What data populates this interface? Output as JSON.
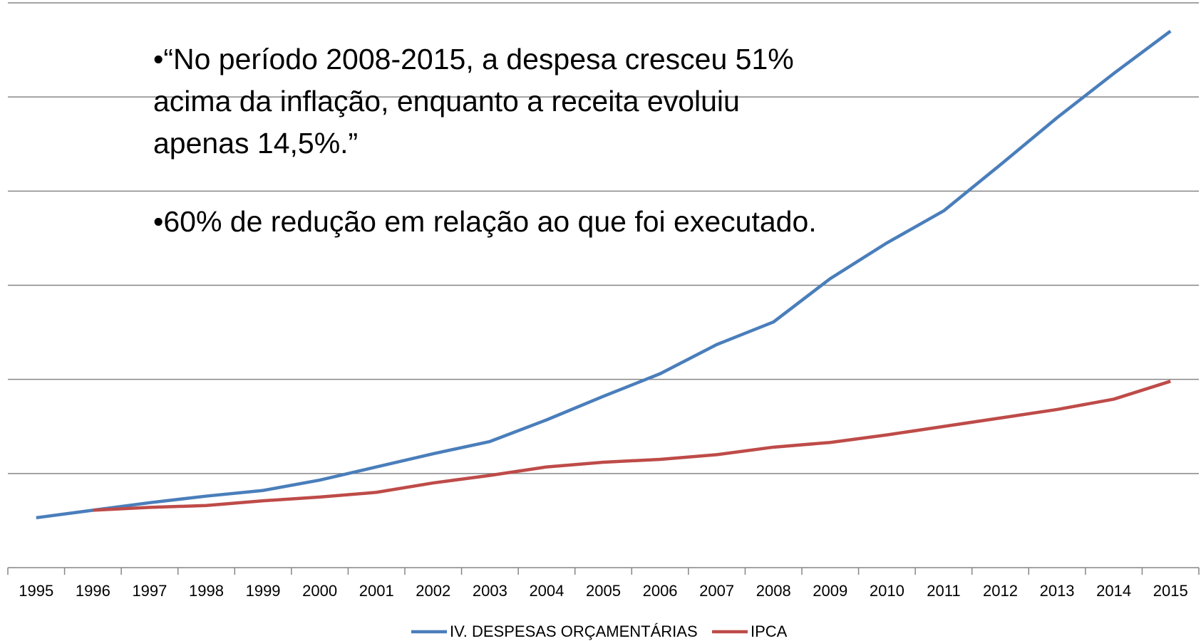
{
  "chart_data": {
    "type": "line",
    "annotations": [
      "•“No período 2008-2015, a despesa cresceu 51%",
      "acima da inflação, enquanto a receita evoluiu",
      "apenas 14,5%.”",
      "•60% de redução em relação ao que foi executado."
    ],
    "categories": [
      "1995",
      "1996",
      "1997",
      "1998",
      "1999",
      "2000",
      "2001",
      "2002",
      "2003",
      "2004",
      "2005",
      "2006",
      "2007",
      "2008",
      "2009",
      "2010",
      "2011",
      "2012",
      "2013",
      "2014",
      "2015"
    ],
    "series": [
      {
        "name": "IV. DESPESAS ORÇAMENTÁRIAS",
        "color": "#4a7ebb",
        "values": [
          0.53,
          0.61,
          0.69,
          0.76,
          0.82,
          0.93,
          1.07,
          1.21,
          1.34,
          1.57,
          1.82,
          2.06,
          2.37,
          2.61,
          3.07,
          3.45,
          3.79,
          4.28,
          4.78,
          5.25,
          5.7
        ]
      },
      {
        "name": "IPCA",
        "color": "#be4b48",
        "values": [
          null,
          0.61,
          0.64,
          0.66,
          0.71,
          0.75,
          0.8,
          0.9,
          0.98,
          1.07,
          1.12,
          1.15,
          1.2,
          1.28,
          1.33,
          1.41,
          1.5,
          1.59,
          1.68,
          1.79,
          1.98
        ]
      }
    ],
    "ylim": [
      0,
      6
    ],
    "yticks": [
      0,
      1,
      2,
      3,
      4,
      5,
      6
    ],
    "grid": true,
    "legend": "bottom"
  }
}
